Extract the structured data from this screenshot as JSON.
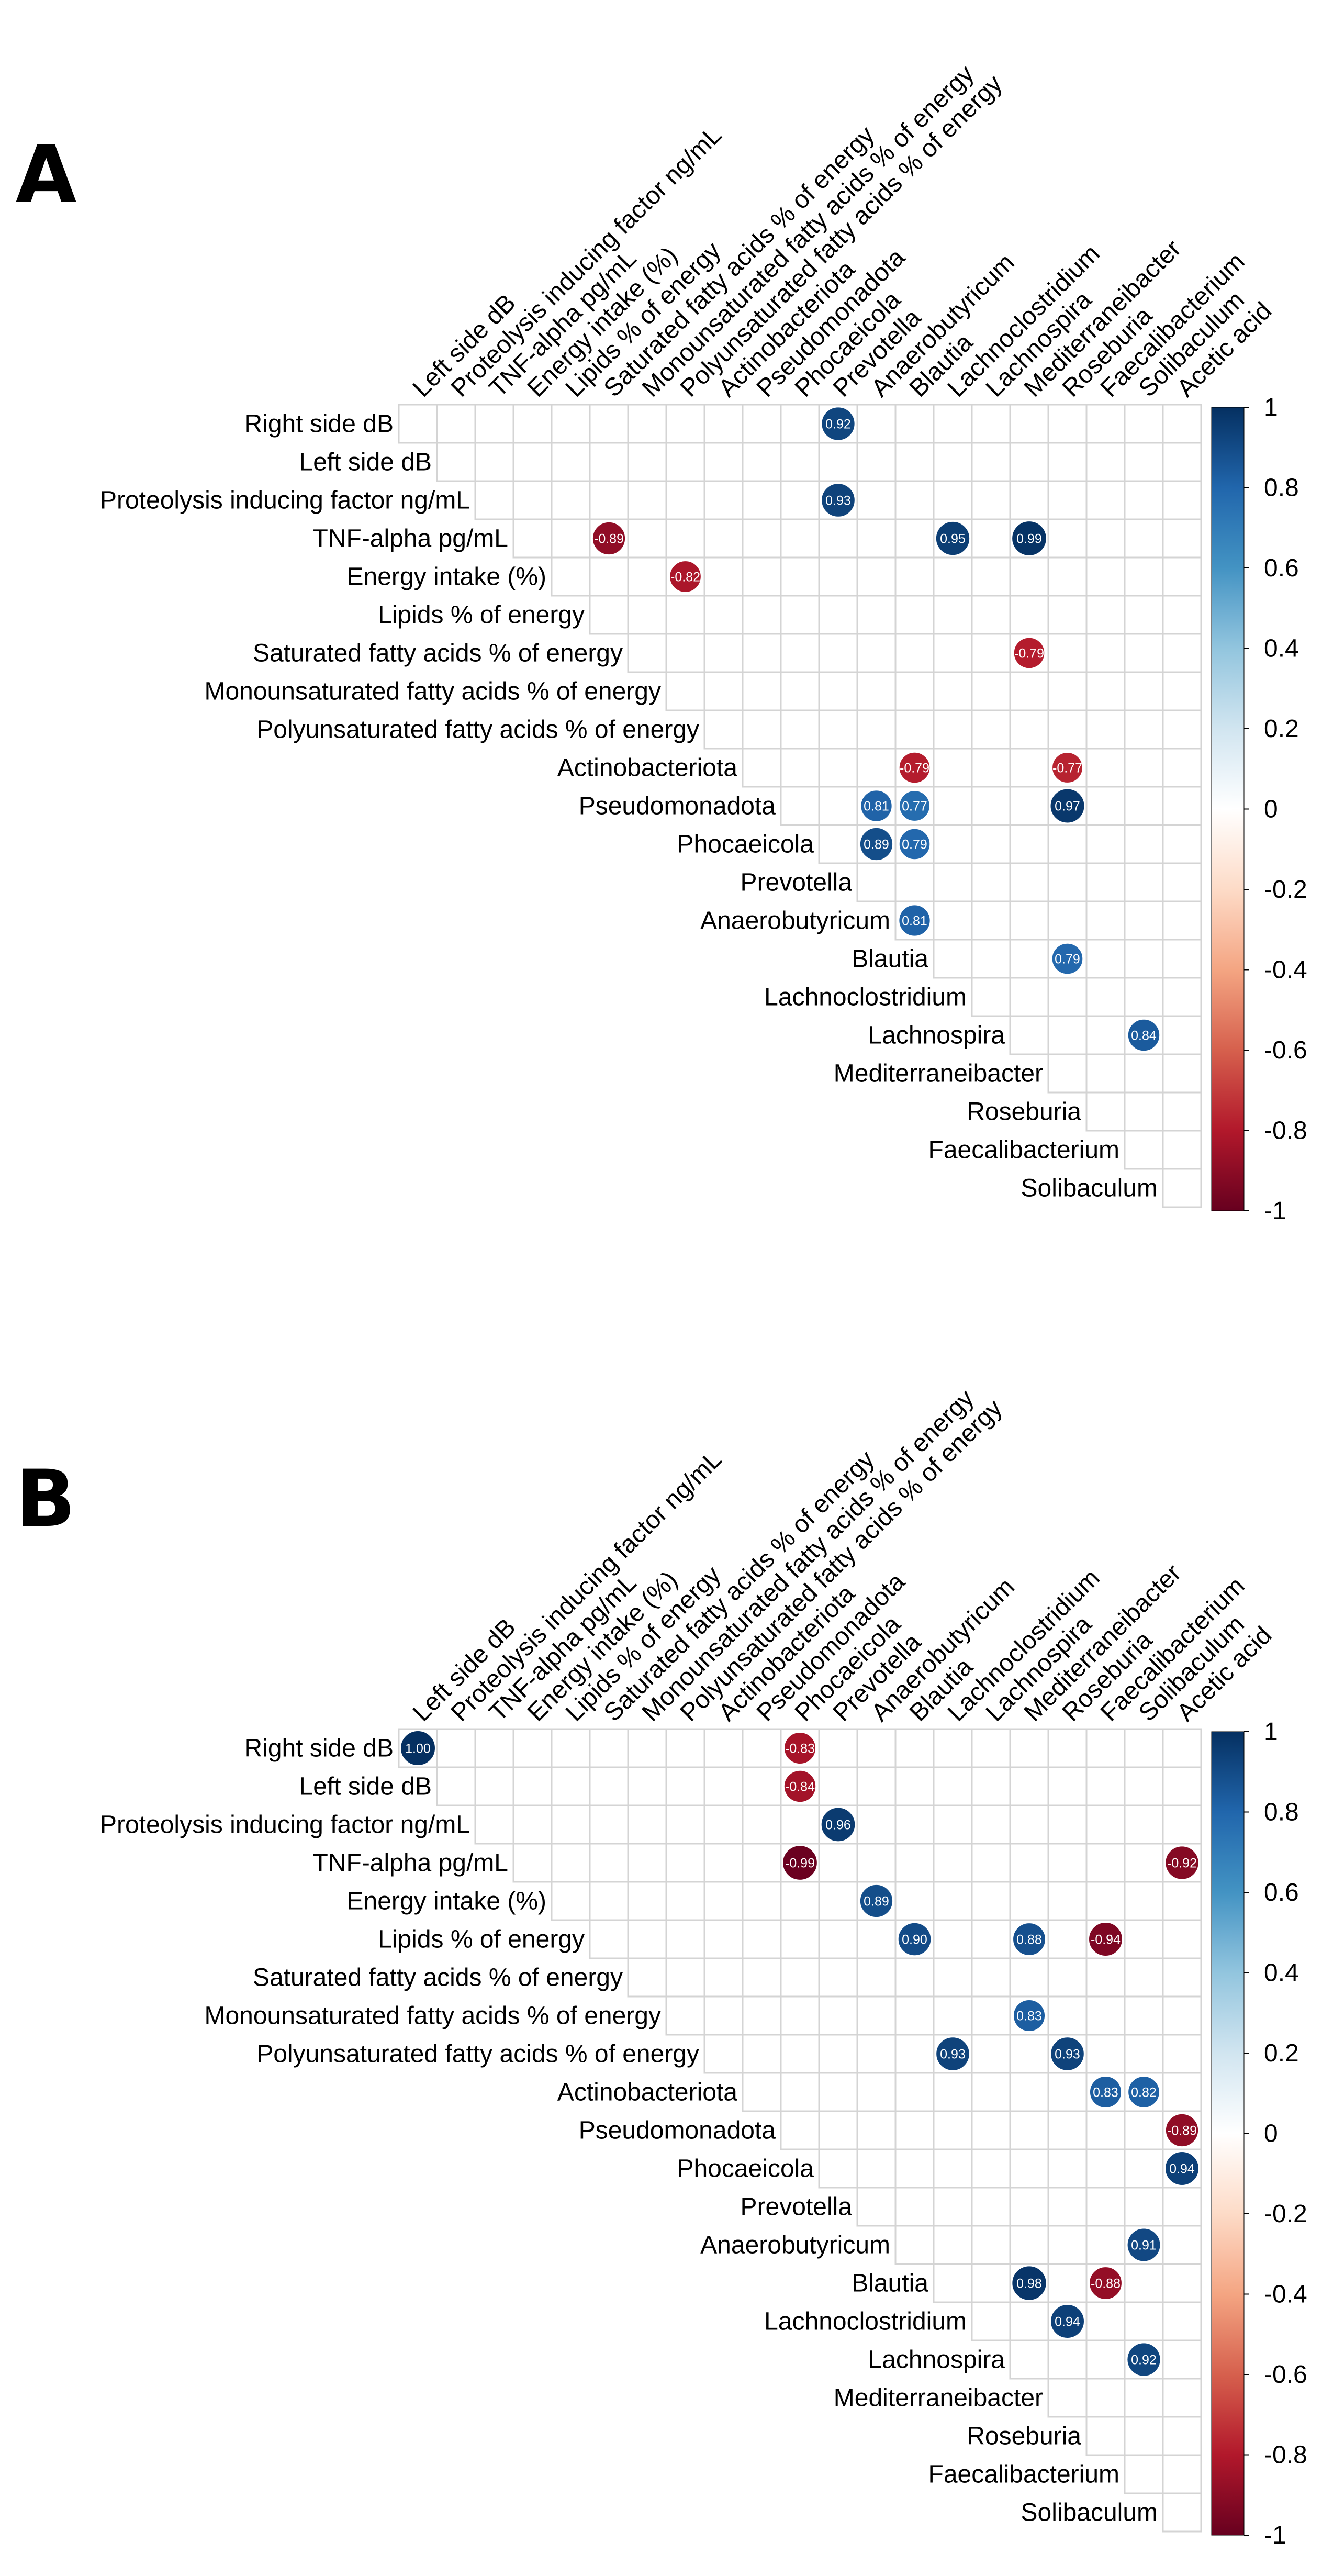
{
  "chart_data": [
    {
      "type": "heatmap",
      "panel_label": "A",
      "row_labels": [
        "Right side dB",
        "Left side dB",
        "Proteolysis inducing factor ng/mL",
        "TNF-alpha pg/mL",
        "Energy intake (%)",
        "Lipids % of energy",
        "Saturated fatty acids % of energy",
        "Monounsaturated fatty acids % of energy",
        "Polyunsaturated fatty acids % of energy",
        "Actinobacteriota",
        "Pseudomonadota",
        "Phocaeicola",
        "Prevotella",
        "Anaerobutyricum",
        "Blautia",
        "Lachnoclostridium",
        "Lachnospira",
        "Mediterraneibacter",
        "Roseburia",
        "Faecalibacterium",
        "Solibaculum"
      ],
      "column_labels": [
        "Left side dB",
        "Proteolysis inducing factor ng/mL",
        "TNF-alpha pg/mL",
        "Energy intake (%)",
        "Lipids % of energy",
        "Saturated fatty acids % of energy",
        "Monounsaturated fatty acids % of energy",
        "Polyunsaturated fatty acids % of energy",
        "Actinobacteriota",
        "Pseudomonadota",
        "Phocaeicola",
        "Prevotella",
        "Anaerobutyricum",
        "Blautia",
        "Lachnoclostridium",
        "Lachnospira",
        "Mediterraneibacter",
        "Roseburia",
        "Faecalibacterium",
        "Solibaculum",
        "Acetic acid"
      ],
      "values": [
        {
          "row": 0,
          "col": 11,
          "value": 0.92,
          "label": "0.92"
        },
        {
          "row": 2,
          "col": 11,
          "value": 0.93,
          "label": "0.93"
        },
        {
          "row": 3,
          "col": 5,
          "value": -0.89,
          "label": "-0.89"
        },
        {
          "row": 3,
          "col": 14,
          "value": 0.95,
          "label": "0.95"
        },
        {
          "row": 3,
          "col": 16,
          "value": 0.99,
          "label": "0.99"
        },
        {
          "row": 4,
          "col": 7,
          "value": -0.82,
          "label": "-0.82"
        },
        {
          "row": 6,
          "col": 16,
          "value": -0.79,
          "label": "-0.79"
        },
        {
          "row": 9,
          "col": 13,
          "value": -0.79,
          "label": "-0.79"
        },
        {
          "row": 9,
          "col": 17,
          "value": -0.77,
          "label": "-0.77"
        },
        {
          "row": 10,
          "col": 12,
          "value": 0.81,
          "label": "0.81"
        },
        {
          "row": 10,
          "col": 13,
          "value": 0.77,
          "label": "0.77"
        },
        {
          "row": 10,
          "col": 17,
          "value": 0.97,
          "label": "0.97"
        },
        {
          "row": 11,
          "col": 12,
          "value": 0.89,
          "label": "0.89"
        },
        {
          "row": 11,
          "col": 13,
          "value": 0.79,
          "label": "0.79"
        },
        {
          "row": 13,
          "col": 13,
          "value": 0.81,
          "label": "0.81"
        },
        {
          "row": 14,
          "col": 17,
          "value": 0.79,
          "label": "0.79"
        },
        {
          "row": 16,
          "col": 19,
          "value": 0.84,
          "label": "0.84"
        }
      ],
      "color_scale": {
        "min": -1,
        "max": 1,
        "ticks": [
          "1",
          "0.8",
          "0.6",
          "0.4",
          "0.2",
          "0",
          "-0.2",
          "-0.4",
          "-0.6",
          "-0.8",
          "-1"
        ]
      }
    },
    {
      "type": "heatmap",
      "panel_label": "B",
      "row_labels": [
        "Right side dB",
        "Left side dB",
        "Proteolysis inducing factor ng/mL",
        "TNF-alpha pg/mL",
        "Energy intake (%)",
        "Lipids % of energy",
        "Saturated fatty acids % of energy",
        "Monounsaturated fatty acids % of energy",
        "Polyunsaturated fatty acids % of energy",
        "Actinobacteriota",
        "Pseudomonadota",
        "Phocaeicola",
        "Prevotella",
        "Anaerobutyricum",
        "Blautia",
        "Lachnoclostridium",
        "Lachnospira",
        "Mediterraneibacter",
        "Roseburia",
        "Faecalibacterium",
        "Solibaculum"
      ],
      "column_labels": [
        "Left side dB",
        "Proteolysis inducing factor ng/mL",
        "TNF-alpha pg/mL",
        "Energy intake (%)",
        "Lipids % of energy",
        "Saturated fatty acids % of energy",
        "Monounsaturated fatty acids % of energy",
        "Polyunsaturated fatty acids % of energy",
        "Actinobacteriota",
        "Pseudomonadota",
        "Phocaeicola",
        "Prevotella",
        "Anaerobutyricum",
        "Blautia",
        "Lachnoclostridium",
        "Lachnospira",
        "Mediterraneibacter",
        "Roseburia",
        "Faecalibacterium",
        "Solibaculum",
        "Acetic acid"
      ],
      "values": [
        {
          "row": 0,
          "col": 0,
          "value": 1.0,
          "label": "1.00"
        },
        {
          "row": 0,
          "col": 10,
          "value": -0.83,
          "label": "-0.83"
        },
        {
          "row": 1,
          "col": 10,
          "value": -0.84,
          "label": "-0.84"
        },
        {
          "row": 2,
          "col": 11,
          "value": 0.96,
          "label": "0.96"
        },
        {
          "row": 3,
          "col": 10,
          "value": -0.99,
          "label": "-0.99"
        },
        {
          "row": 3,
          "col": 20,
          "value": -0.92,
          "label": "-0.92"
        },
        {
          "row": 4,
          "col": 12,
          "value": 0.89,
          "label": "0.89"
        },
        {
          "row": 5,
          "col": 13,
          "value": 0.9,
          "label": "0.90"
        },
        {
          "row": 5,
          "col": 16,
          "value": 0.88,
          "label": "0.88"
        },
        {
          "row": 5,
          "col": 18,
          "value": -0.94,
          "label": "-0.94"
        },
        {
          "row": 7,
          "col": 16,
          "value": 0.83,
          "label": "0.83"
        },
        {
          "row": 8,
          "col": 14,
          "value": 0.93,
          "label": "0.93"
        },
        {
          "row": 8,
          "col": 17,
          "value": 0.93,
          "label": "0.93"
        },
        {
          "row": 9,
          "col": 18,
          "value": 0.83,
          "label": "0.83"
        },
        {
          "row": 9,
          "col": 19,
          "value": 0.82,
          "label": "0.82"
        },
        {
          "row": 10,
          "col": 20,
          "value": -0.89,
          "label": "-0.89"
        },
        {
          "row": 11,
          "col": 20,
          "value": 0.94,
          "label": "0.94"
        },
        {
          "row": 13,
          "col": 19,
          "value": 0.91,
          "label": "0.91"
        },
        {
          "row": 14,
          "col": 16,
          "value": 0.98,
          "label": "0.98"
        },
        {
          "row": 14,
          "col": 18,
          "value": -0.88,
          "label": "-0.88"
        },
        {
          "row": 15,
          "col": 17,
          "value": 0.94,
          "label": "0.94"
        },
        {
          "row": 16,
          "col": 19,
          "value": 0.92,
          "label": "0.92"
        }
      ],
      "color_scale": {
        "min": -1,
        "max": 1,
        "ticks": [
          "1",
          "0.8",
          "0.6",
          "0.4",
          "0.2",
          "0",
          "-0.2",
          "-0.4",
          "-0.6",
          "-0.8",
          "-1"
        ]
      }
    }
  ]
}
